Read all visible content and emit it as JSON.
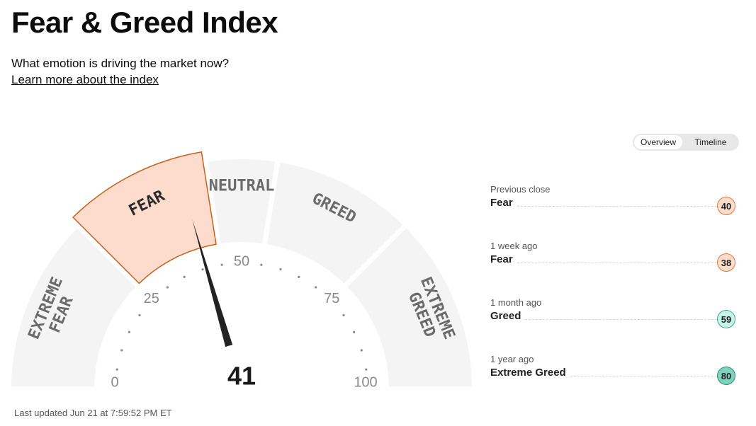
{
  "header": {
    "title": "Fear & Greed Index",
    "subtitle": "What emotion is driving the market now?",
    "learn_more": "Learn more about the index"
  },
  "view_toggle": {
    "options": [
      "Overview",
      "Timeline"
    ],
    "selected": "Overview"
  },
  "gauge": {
    "value": 41,
    "scale": [
      0,
      100
    ],
    "tick_labels": [
      "0",
      "25",
      "50",
      "75",
      "100"
    ],
    "active_segment": "FEAR",
    "segments": [
      {
        "lines": [
          "EXTREME",
          "FEAR"
        ],
        "from": 0,
        "to": 25
      },
      {
        "lines": [
          "FEAR"
        ],
        "from": 25,
        "to": 45
      },
      {
        "lines": [
          "NEUTRAL"
        ],
        "from": 45,
        "to": 55
      },
      {
        "lines": [
          "GREED"
        ],
        "from": 55,
        "to": 75
      },
      {
        "lines": [
          "EXTREME",
          "GREED"
        ],
        "from": 75,
        "to": 100
      }
    ],
    "colors": {
      "segment": "#f4f4f4",
      "active_fill": "#fddccd",
      "active_stroke": "#c5621c",
      "needle": "#222222"
    }
  },
  "last_updated": "Last updated Jun 21 at 7:59:52 PM ET",
  "history": [
    {
      "period": "Previous close",
      "label": "Fear",
      "value": "40",
      "fill": "#fddccd",
      "border": "#e07a3a"
    },
    {
      "period": "1 week ago",
      "label": "Fear",
      "value": "38",
      "fill": "#fddccd",
      "border": "#e07a3a"
    },
    {
      "period": "1 month ago",
      "label": "Greed",
      "value": "59",
      "fill": "#c6f2e8",
      "border": "#3fa88f"
    },
    {
      "period": "1 year ago",
      "label": "Extreme Greed",
      "value": "80",
      "fill": "#7fd3bd",
      "border": "#2e8f77"
    }
  ]
}
